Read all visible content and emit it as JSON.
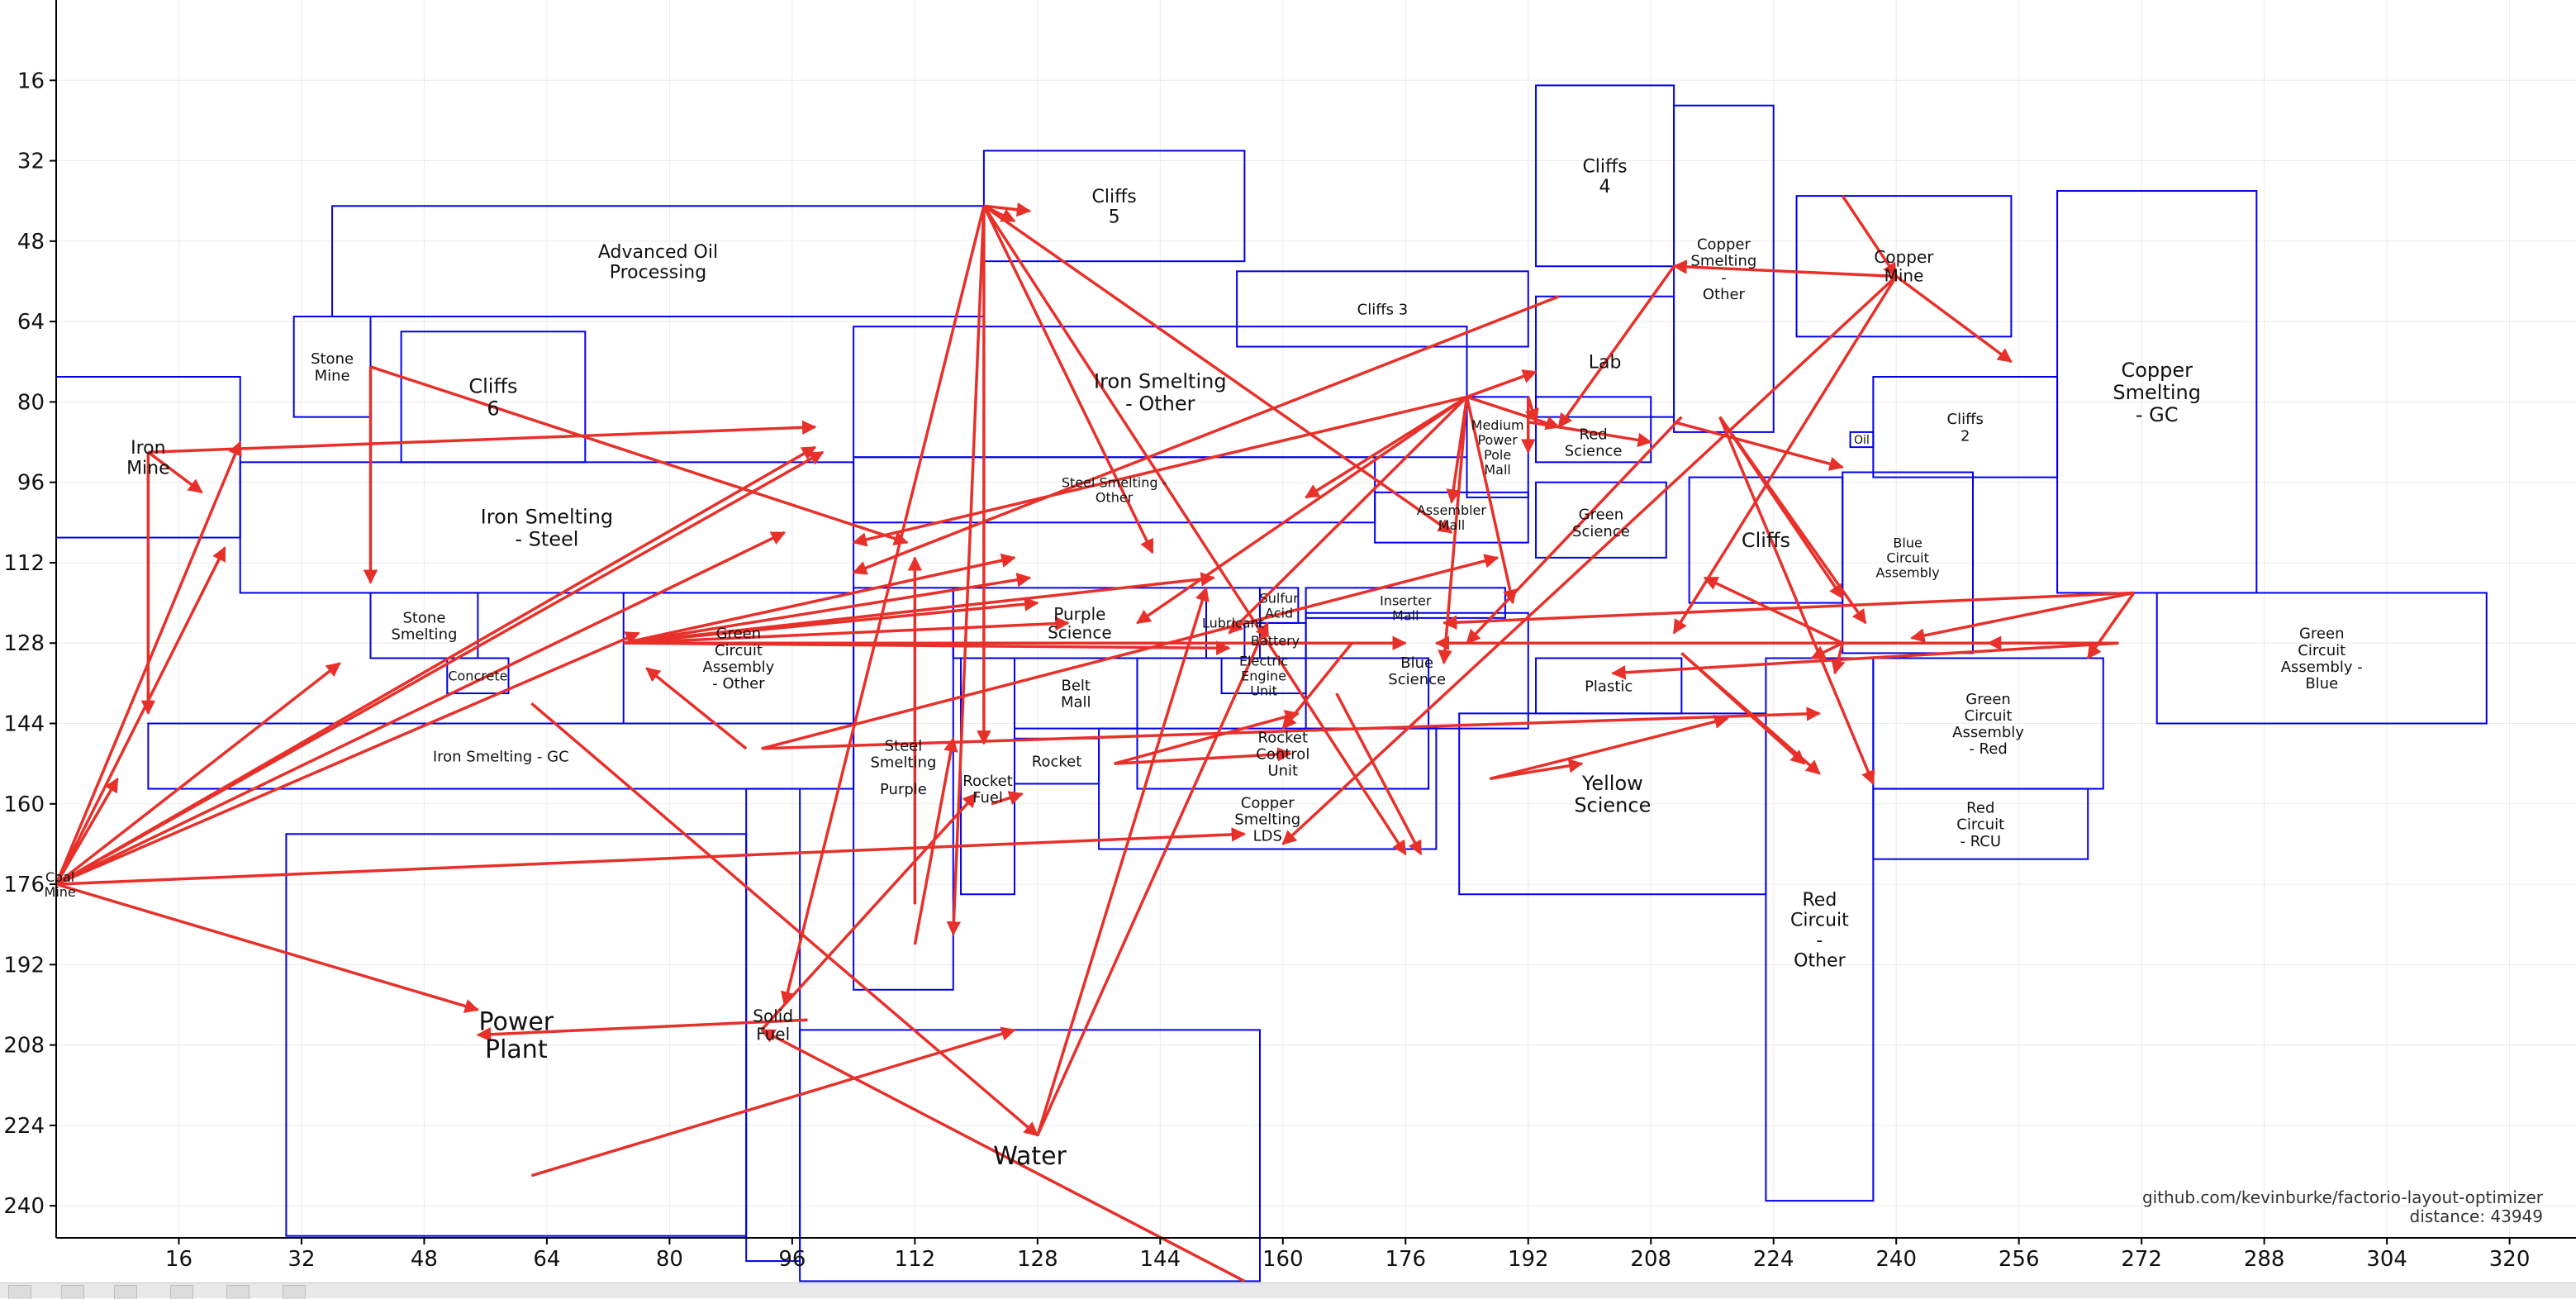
{
  "chart_data": {
    "type": "diagram",
    "xlim": [
      0,
      330
    ],
    "ylim": [
      0,
      248
    ],
    "y_inverted": true,
    "grid": true,
    "x_ticks": [
      16,
      32,
      48,
      64,
      80,
      96,
      112,
      128,
      144,
      160,
      176,
      192,
      208,
      224,
      240,
      256,
      272,
      288,
      304,
      320
    ],
    "y_ticks": [
      16,
      32,
      48,
      64,
      80,
      96,
      112,
      128,
      144,
      160,
      176,
      192,
      208,
      224,
      240
    ],
    "rect_color": "#0000ee",
    "arrow_color": "#e8302a",
    "grid_color": "#ebebeb",
    "rects": [
      {
        "label": "Iron\nMine",
        "x": 0,
        "y": 75,
        "w": 24,
        "h": 32,
        "fs": 11
      },
      {
        "label": "Iron Smelting\n- Steel",
        "x": 24,
        "y": 92,
        "w": 80,
        "h": 26,
        "fs": 12
      },
      {
        "label": "Advanced Oil\nProcessing",
        "x": 36,
        "y": 41,
        "w": 85,
        "h": 22,
        "fs": 11
      },
      {
        "label": "Stone\nMine",
        "x": 31,
        "y": 63,
        "w": 10,
        "h": 20,
        "fs": 9
      },
      {
        "label": "Cliffs\n6",
        "x": 45,
        "y": 66,
        "w": 24,
        "h": 26,
        "fs": 12
      },
      {
        "label": "Stone\nSmelting",
        "x": 41,
        "y": 118,
        "w": 14,
        "h": 13,
        "fs": 9
      },
      {
        "label": "Concrete",
        "x": 51,
        "y": 131,
        "w": 8,
        "h": 7,
        "fs": 8
      },
      {
        "label": "Green\nCircuit\nAssembly\n- Other",
        "x": 74,
        "y": 118,
        "w": 30,
        "h": 26,
        "fs": 9
      },
      {
        "label": "Iron Smelting - GC",
        "x": 12,
        "y": 144,
        "w": 92,
        "h": 13,
        "fs": 9
      },
      {
        "label": "Power\nPlant",
        "x": 30,
        "y": 166,
        "w": 60,
        "h": 80,
        "fs": 15
      },
      {
        "label": "Solid\nFuel",
        "x": 90,
        "y": 157,
        "w": 7,
        "h": 94,
        "fs": 10
      },
      {
        "label": "Water",
        "x": 97,
        "y": 205,
        "w": 60,
        "h": 50,
        "fs": 15
      },
      {
        "label": "Steel\nSmelting",
        "x": 104,
        "y": 117,
        "w": 13,
        "h": 80,
        "fs": 9,
        "ly": 150
      },
      {
        "label": "Purple",
        "x": 104,
        "y": 117,
        "w": 13,
        "h": 80,
        "fs": 9,
        "ly": 157,
        "noRect": true
      },
      {
        "label": "Cliffs\n5",
        "x": 121,
        "y": 30,
        "w": 34,
        "h": 22,
        "fs": 11
      },
      {
        "label": "Iron Smelting\n- Other",
        "x": 104,
        "y": 65,
        "w": 80,
        "h": 26,
        "fs": 12
      },
      {
        "label": "Steel Smelting -\nOther",
        "x": 104,
        "y": 91,
        "w": 68,
        "h": 13,
        "fs": 8
      },
      {
        "label": "Purple\nScience",
        "x": 117,
        "y": 117,
        "w": 33,
        "h": 14,
        "fs": 10
      },
      {
        "label": "Rocket\nFuel",
        "x": 118,
        "y": 131,
        "w": 7,
        "h": 47,
        "fs": 9,
        "ly": 157
      },
      {
        "label": "Belt\nMall",
        "x": 125,
        "y": 131,
        "w": 16,
        "h": 14,
        "fs": 9
      },
      {
        "label": "Rocket",
        "x": 125,
        "y": 147,
        "w": 11,
        "h": 9,
        "fs": 9
      },
      {
        "label": "Rocket\nControl\nUnit",
        "x": 141,
        "y": 131,
        "w": 38,
        "h": 26,
        "fs": 9,
        "lx": 160,
        "ly": 150
      },
      {
        "label": "Copper\nSmelting\nLDS",
        "x": 136,
        "y": 145,
        "w": 44,
        "h": 24,
        "fs": 9,
        "ly": 163
      },
      {
        "label": "Lubricant",
        "x": 150,
        "y": 117,
        "w": 7,
        "h": 14,
        "fs": 8
      },
      {
        "label": "Sulfur\nAcid",
        "x": 157,
        "y": 117,
        "w": 5,
        "h": 7,
        "fs": 8
      },
      {
        "label": "Battery",
        "x": 155,
        "y": 124,
        "w": 8,
        "h": 7,
        "fs": 8
      },
      {
        "label": "Electric\nEngine\nUnit",
        "x": 152,
        "y": 131,
        "w": 11,
        "h": 7,
        "fs": 8
      },
      {
        "label": "Blue\nScience",
        "x": 163,
        "y": 122,
        "w": 29,
        "h": 23,
        "fs": 9
      },
      {
        "label": "Inserter\nMall",
        "x": 163,
        "y": 117,
        "w": 26,
        "h": 6,
        "fs": 8,
        "ly": 121
      },
      {
        "label": "Assembler\nMall",
        "x": 172,
        "y": 98,
        "w": 20,
        "h": 10,
        "fs": 8
      },
      {
        "label": "Cliffs 3",
        "x": 154,
        "y": 54,
        "w": 38,
        "h": 15,
        "fs": 9
      },
      {
        "label": "Medium\nPower\nPole\nMall",
        "x": 184,
        "y": 79,
        "w": 8,
        "h": 20,
        "fs": 8,
        "ly": 89
      },
      {
        "label": "Cliffs\n4",
        "x": 193,
        "y": 17,
        "w": 18,
        "h": 36,
        "fs": 11
      },
      {
        "label": "Lab",
        "x": 193,
        "y": 59,
        "w": 18,
        "h": 24,
        "fs": 11,
        "ly": 72
      },
      {
        "label": "Red\nScience",
        "x": 193,
        "y": 79,
        "w": 15,
        "h": 13,
        "fs": 9,
        "ly": 88
      },
      {
        "label": "Green\nScience",
        "x": 193,
        "y": 96,
        "w": 17,
        "h": 15,
        "fs": 9,
        "ly": 104
      },
      {
        "label": "Plastic",
        "x": 193,
        "y": 131,
        "w": 19,
        "h": 11,
        "fs": 9
      },
      {
        "label": "Yellow\nScience",
        "x": 183,
        "y": 142,
        "w": 40,
        "h": 36,
        "fs": 12,
        "ly": 158
      },
      {
        "label": "Copper\nSmelting\n-\nOther",
        "x": 211,
        "y": 21,
        "w": 13,
        "h": 65,
        "fs": 9
      },
      {
        "label": "Copper\nMine",
        "x": 227,
        "y": 39,
        "w": 28,
        "h": 28,
        "fs": 10
      },
      {
        "label": "Cliffs\n2",
        "x": 237,
        "y": 75,
        "w": 24,
        "h": 20,
        "fs": 9
      },
      {
        "label": "Copper\nSmelting\n- GC",
        "x": 261,
        "y": 38,
        "w": 26,
        "h": 80,
        "fs": 12
      },
      {
        "label": "Cliffs",
        "x": 213,
        "y": 95,
        "w": 20,
        "h": 25,
        "fs": 12
      },
      {
        "label": "Oil",
        "x": 234,
        "y": 86,
        "w": 3,
        "h": 3,
        "fs": 7
      },
      {
        "label": "Blue\nCircuit\nAssembly",
        "x": 233,
        "y": 94,
        "w": 17,
        "h": 36,
        "fs": 8,
        "ly": 111
      },
      {
        "label": "Green\nCircuit\nAssembly\n- Red",
        "x": 237,
        "y": 131,
        "w": 30,
        "h": 26,
        "fs": 9
      },
      {
        "label": "Red\nCircuit\n- RCU",
        "x": 237,
        "y": 157,
        "w": 28,
        "h": 14,
        "fs": 9
      },
      {
        "label": "Red\nCircuit\n-\nOther",
        "x": 223,
        "y": 131,
        "w": 14,
        "h": 108,
        "fs": 11,
        "ly": 185
      },
      {
        "label": "Green\nCircuit\nAssembly -\nBlue",
        "x": 274,
        "y": 118,
        "w": 43,
        "h": 26,
        "fs": 9
      },
      {
        "label": "Coal\nMine",
        "x": 0,
        "y": 176,
        "w": 0,
        "h": 0,
        "fs": 8,
        "lx": 0.5,
        "ly": 176,
        "noRect": true
      }
    ],
    "arrows": [
      [
        0,
        176,
        24,
        88
      ],
      [
        0,
        176,
        76,
        126
      ],
      [
        0,
        176,
        95,
        106
      ],
      [
        0,
        176,
        99,
        89
      ],
      [
        0,
        176,
        100,
        90
      ],
      [
        0,
        176,
        155,
        166
      ],
      [
        0,
        176,
        55,
        201
      ],
      [
        0,
        176,
        8,
        155
      ],
      [
        0,
        176,
        22,
        109
      ],
      [
        0,
        176,
        37,
        132
      ],
      [
        12,
        90,
        19,
        98
      ],
      [
        12,
        90,
        12,
        142
      ],
      [
        12,
        90,
        99,
        85
      ],
      [
        41,
        73,
        41,
        116
      ],
      [
        41,
        73,
        111,
        108
      ],
      [
        121,
        41,
        125,
        44
      ],
      [
        121,
        41,
        127,
        42
      ],
      [
        121,
        41,
        121,
        148
      ],
      [
        121,
        41,
        95,
        200
      ],
      [
        121,
        41,
        117,
        186
      ],
      [
        121,
        41,
        143,
        110
      ],
      [
        121,
        41,
        182,
        106
      ],
      [
        121,
        41,
        176,
        170
      ],
      [
        155,
        255,
        92,
        205
      ],
      [
        98,
        203,
        55,
        206
      ],
      [
        92,
        205,
        120,
        158
      ],
      [
        74,
        128,
        128,
        120
      ],
      [
        74,
        128,
        127,
        115
      ],
      [
        74,
        128,
        125,
        111
      ],
      [
        74,
        128,
        151,
        115
      ],
      [
        74,
        128,
        132,
        124
      ],
      [
        74,
        128,
        153,
        129
      ],
      [
        74,
        128,
        176,
        128
      ],
      [
        92,
        149,
        188,
        111
      ],
      [
        92,
        149,
        230,
        142
      ],
      [
        90,
        149,
        77,
        133
      ],
      [
        62,
        140,
        128,
        226
      ],
      [
        62,
        234,
        125,
        205
      ],
      [
        128,
        226,
        150,
        117
      ],
      [
        128,
        226,
        158,
        124
      ],
      [
        138,
        152,
        162,
        142
      ],
      [
        138,
        152,
        161,
        150
      ],
      [
        122,
        160,
        126,
        158
      ],
      [
        184,
        79,
        153,
        126
      ],
      [
        184,
        79,
        193,
        74
      ],
      [
        184,
        79,
        163,
        99
      ],
      [
        184,
        79,
        141,
        124
      ],
      [
        184,
        79,
        104,
        108
      ],
      [
        184,
        79,
        196,
        85
      ],
      [
        184,
        79,
        181,
        132
      ],
      [
        184,
        79,
        190,
        120
      ],
      [
        184,
        79,
        182,
        100
      ],
      [
        192,
        84,
        208,
        88
      ],
      [
        192,
        79,
        192,
        90
      ],
      [
        192,
        79,
        193,
        84
      ],
      [
        211,
        53,
        196,
        85
      ],
      [
        212,
        83,
        184,
        128
      ],
      [
        211,
        84,
        233,
        93
      ],
      [
        217,
        83,
        236,
        124
      ],
      [
        217,
        83,
        237,
        156
      ],
      [
        217,
        83,
        233,
        119
      ],
      [
        233,
        39,
        240,
        55
      ],
      [
        240,
        55,
        211,
        53
      ],
      [
        240,
        55,
        255,
        72
      ],
      [
        240,
        55,
        211,
        126
      ],
      [
        240,
        55,
        160,
        168
      ],
      [
        271,
        118,
        242,
        127
      ],
      [
        271,
        118,
        181,
        124
      ],
      [
        271,
        118,
        265,
        131
      ],
      [
        269,
        128,
        252,
        128
      ],
      [
        269,
        128,
        203,
        134
      ],
      [
        269,
        128,
        180,
        128
      ],
      [
        233,
        128,
        215,
        115
      ],
      [
        233,
        128,
        232,
        134
      ],
      [
        233,
        128,
        229,
        131
      ],
      [
        212,
        130,
        230,
        154
      ],
      [
        212,
        130,
        228,
        152
      ],
      [
        187,
        155,
        218,
        143
      ],
      [
        187,
        155,
        199,
        152
      ],
      [
        169,
        128,
        160,
        145
      ],
      [
        112,
        188,
        117,
        147
      ],
      [
        112,
        180,
        112,
        111
      ],
      [
        167,
        138,
        178,
        170
      ],
      [
        196,
        59,
        104,
        114
      ]
    ],
    "credit": "github.com/kevinburke/factorio-layout-optimizer",
    "distance_text": "distance: 43949"
  }
}
